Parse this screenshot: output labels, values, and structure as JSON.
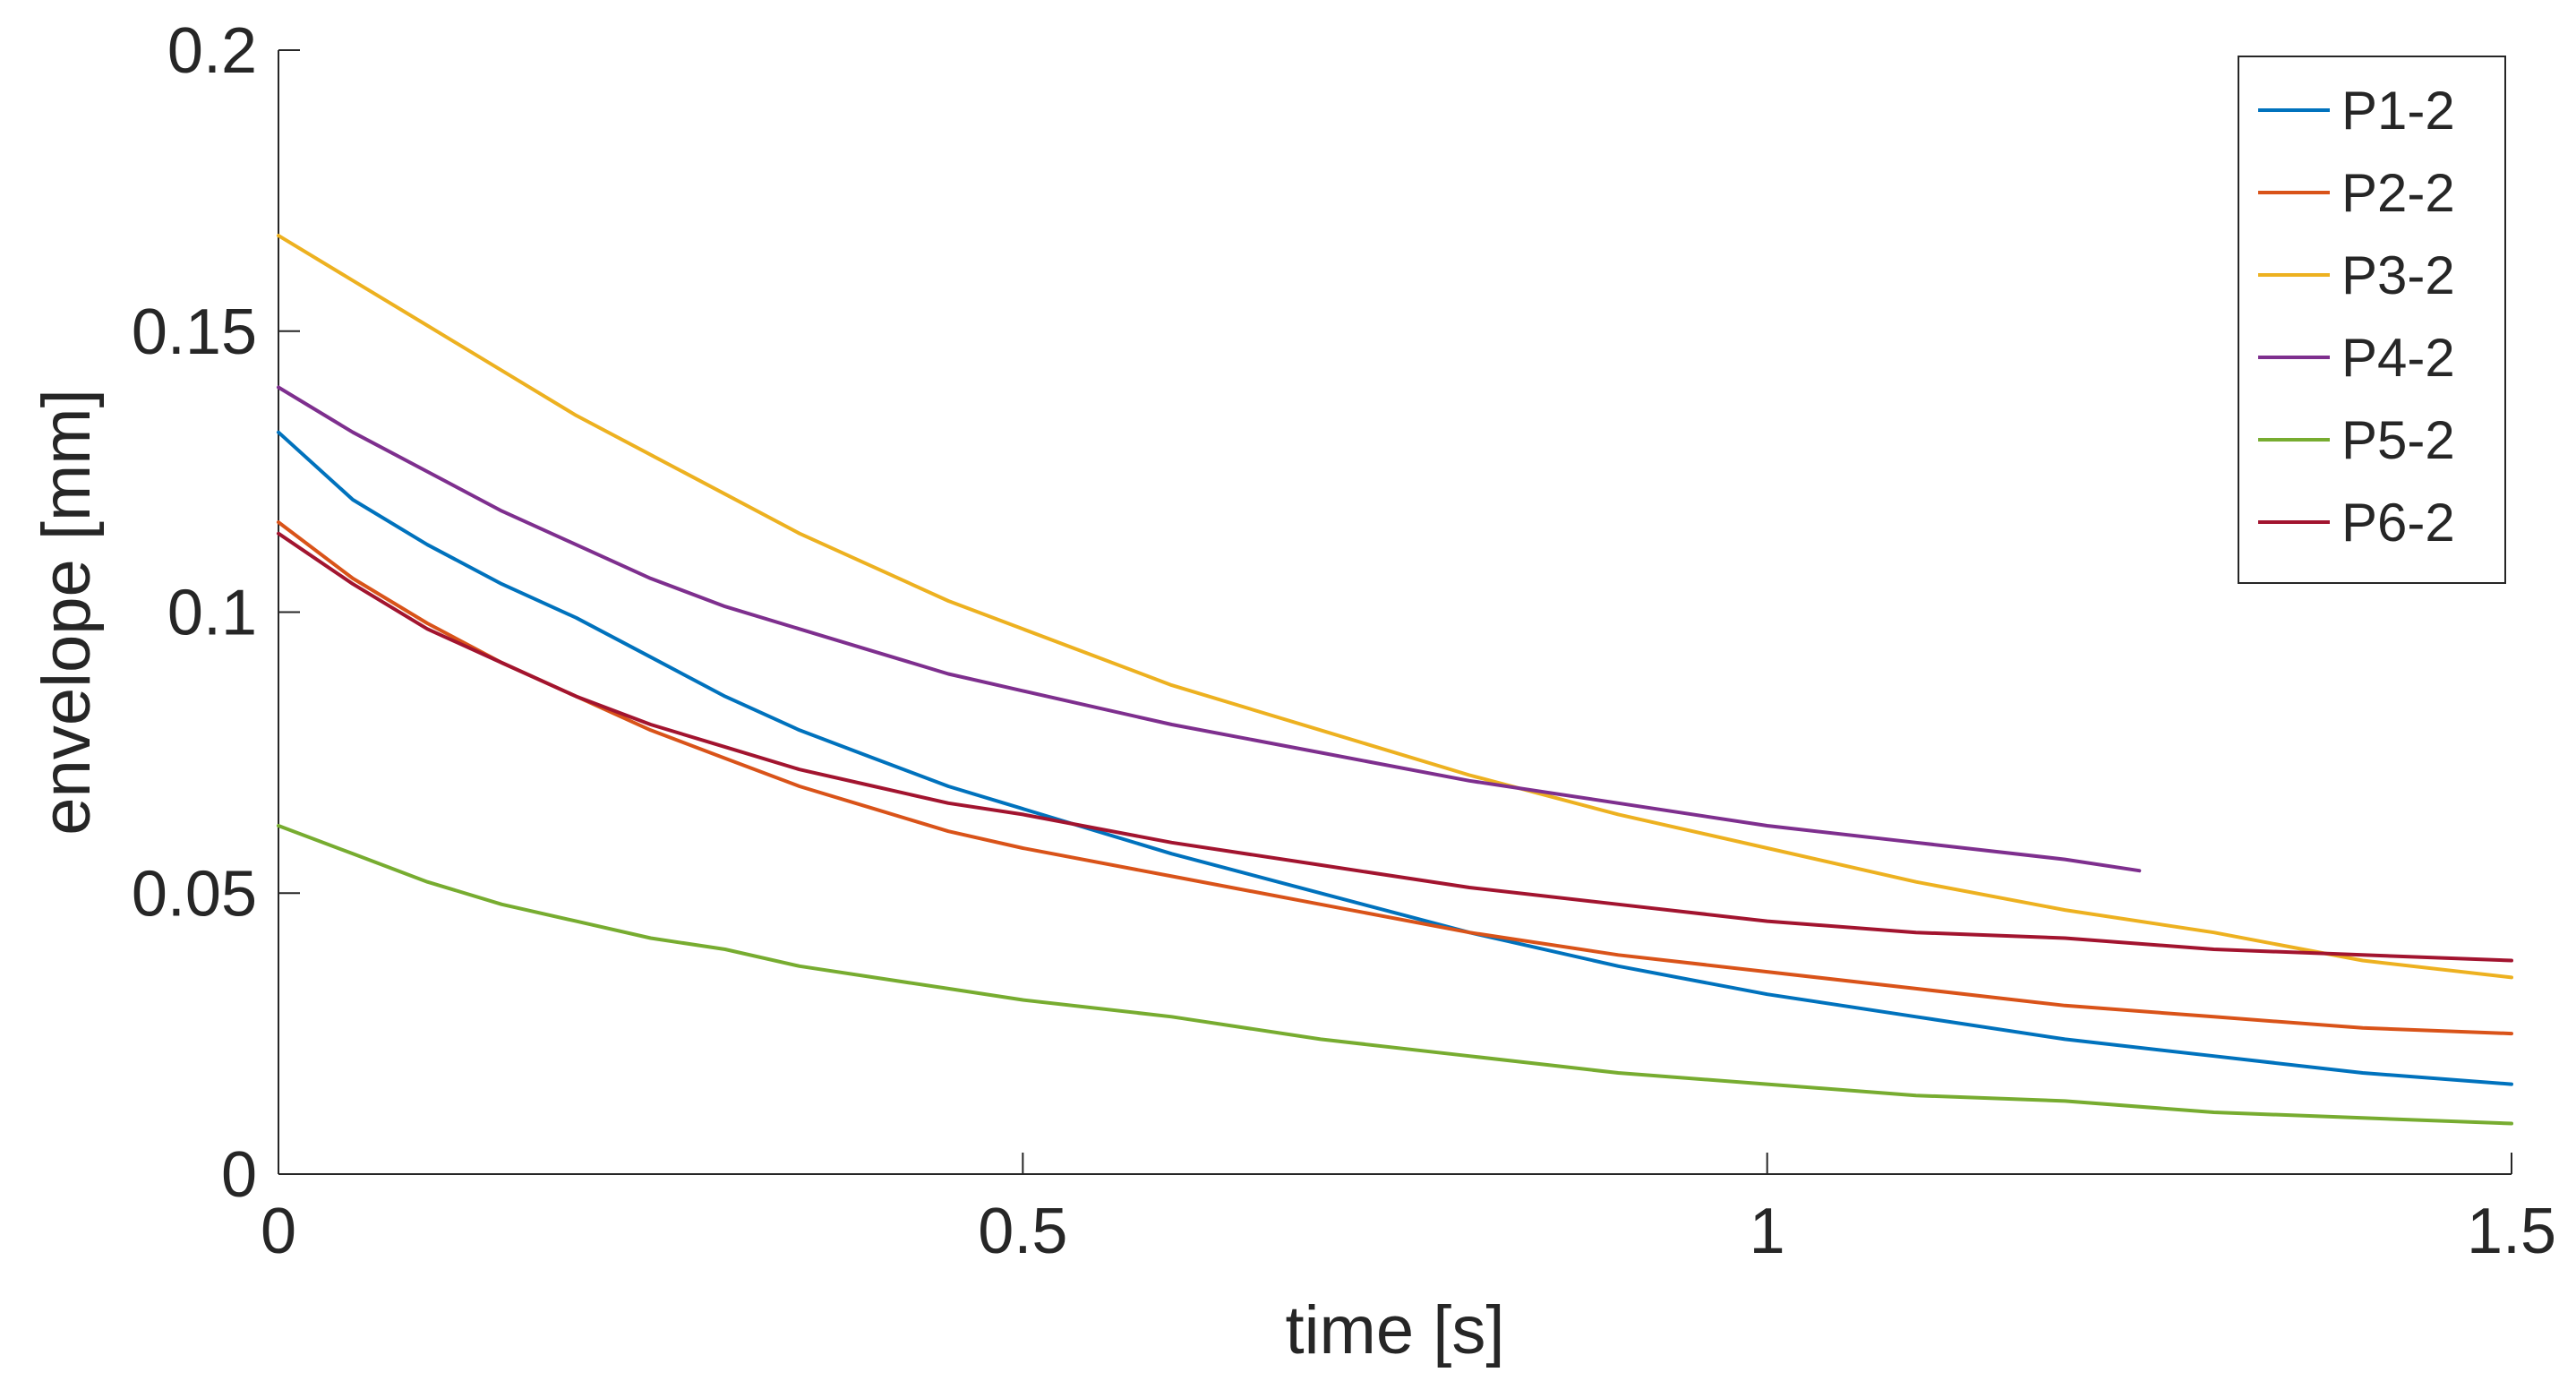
{
  "chart_data": {
    "type": "line",
    "title": "",
    "xlabel": "time [s]",
    "ylabel": "envelope [mm]",
    "xlim": [
      0,
      1.5
    ],
    "ylim": [
      0,
      0.2
    ],
    "xticks": [
      0,
      0.5,
      1,
      1.5
    ],
    "xtick_labels": [
      "0",
      "0.5",
      "1",
      "1.5"
    ],
    "yticks": [
      0,
      0.05,
      0.1,
      0.15,
      0.2
    ],
    "ytick_labels": [
      "0",
      "0.05",
      "0.1",
      "0.15",
      "0.2"
    ],
    "grid": false,
    "legend_position": "top-right",
    "series": [
      {
        "name": "P1-2",
        "color": "#0072BD",
        "x": [
          0,
          0.05,
          0.1,
          0.15,
          0.2,
          0.25,
          0.3,
          0.35,
          0.4,
          0.45,
          0.5,
          0.6,
          0.7,
          0.8,
          0.9,
          1.0,
          1.1,
          1.2,
          1.3,
          1.4,
          1.5
        ],
        "y": [
          0.132,
          0.12,
          0.112,
          0.105,
          0.099,
          0.092,
          0.085,
          0.079,
          0.074,
          0.069,
          0.065,
          0.057,
          0.05,
          0.043,
          0.037,
          0.032,
          0.028,
          0.024,
          0.021,
          0.018,
          0.016
        ]
      },
      {
        "name": "P2-2",
        "color": "#D95319",
        "x": [
          0,
          0.05,
          0.1,
          0.15,
          0.2,
          0.25,
          0.3,
          0.35,
          0.4,
          0.45,
          0.5,
          0.6,
          0.7,
          0.8,
          0.9,
          1.0,
          1.1,
          1.2,
          1.3,
          1.4,
          1.5
        ],
        "y": [
          0.116,
          0.106,
          0.098,
          0.091,
          0.085,
          0.079,
          0.074,
          0.069,
          0.065,
          0.061,
          0.058,
          0.053,
          0.048,
          0.043,
          0.039,
          0.036,
          0.033,
          0.03,
          0.028,
          0.026,
          0.025
        ]
      },
      {
        "name": "P3-2",
        "color": "#EDB120",
        "x": [
          0,
          0.05,
          0.1,
          0.15,
          0.2,
          0.25,
          0.3,
          0.35,
          0.4,
          0.45,
          0.5,
          0.6,
          0.7,
          0.8,
          0.9,
          1.0,
          1.1,
          1.2,
          1.3,
          1.4,
          1.5
        ],
        "y": [
          0.167,
          0.159,
          0.151,
          0.143,
          0.135,
          0.128,
          0.121,
          0.114,
          0.108,
          0.102,
          0.097,
          0.087,
          0.079,
          0.071,
          0.064,
          0.058,
          0.052,
          0.047,
          0.043,
          0.038,
          0.035
        ]
      },
      {
        "name": "P4-2",
        "color": "#7E2F8E",
        "x": [
          0,
          0.05,
          0.1,
          0.15,
          0.2,
          0.25,
          0.3,
          0.35,
          0.4,
          0.45,
          0.5,
          0.6,
          0.7,
          0.8,
          0.9,
          1.0,
          1.1,
          1.2,
          1.25
        ],
        "y": [
          0.14,
          0.132,
          0.125,
          0.118,
          0.112,
          0.106,
          0.101,
          0.097,
          0.093,
          0.089,
          0.086,
          0.08,
          0.075,
          0.07,
          0.066,
          0.062,
          0.059,
          0.056,
          0.054
        ]
      },
      {
        "name": "P5-2",
        "color": "#77AC30",
        "x": [
          0,
          0.05,
          0.1,
          0.15,
          0.2,
          0.25,
          0.3,
          0.35,
          0.4,
          0.45,
          0.5,
          0.6,
          0.7,
          0.8,
          0.9,
          1.0,
          1.1,
          1.2,
          1.3,
          1.4,
          1.5
        ],
        "y": [
          0.062,
          0.057,
          0.052,
          0.048,
          0.045,
          0.042,
          0.04,
          0.037,
          0.035,
          0.033,
          0.031,
          0.028,
          0.024,
          0.021,
          0.018,
          0.016,
          0.014,
          0.013,
          0.011,
          0.01,
          0.009
        ]
      },
      {
        "name": "P6-2",
        "color": "#A2142F",
        "x": [
          0,
          0.05,
          0.1,
          0.15,
          0.2,
          0.25,
          0.3,
          0.35,
          0.4,
          0.45,
          0.5,
          0.6,
          0.7,
          0.8,
          0.9,
          1.0,
          1.1,
          1.2,
          1.3,
          1.4,
          1.5
        ],
        "y": [
          0.114,
          0.105,
          0.097,
          0.091,
          0.085,
          0.08,
          0.076,
          0.072,
          0.069,
          0.066,
          0.064,
          0.059,
          0.055,
          0.051,
          0.048,
          0.045,
          0.043,
          0.042,
          0.04,
          0.039,
          0.038
        ]
      }
    ]
  }
}
